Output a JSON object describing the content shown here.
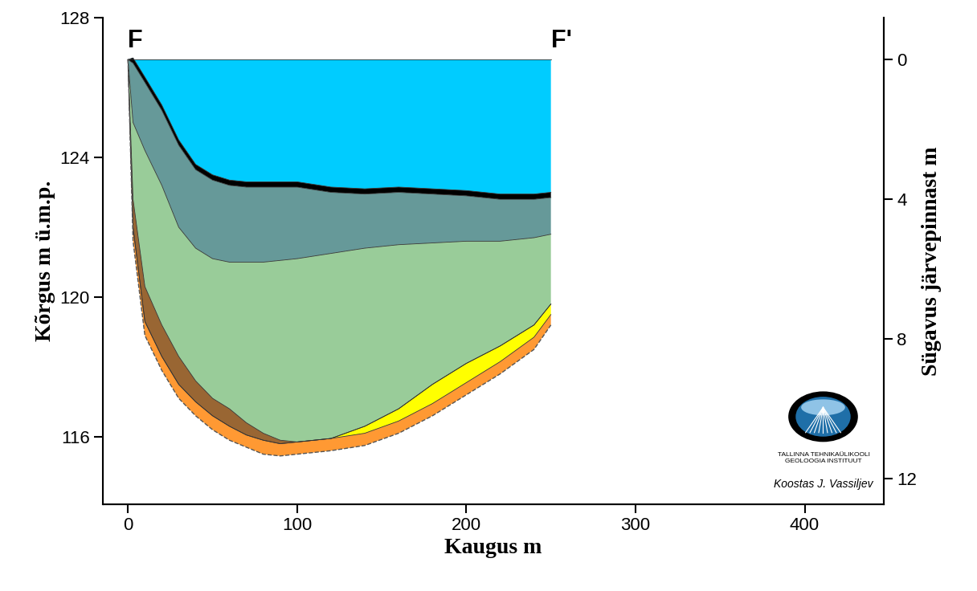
{
  "chart_data": {
    "type": "area",
    "section_start": "F",
    "section_end": "F'",
    "x_label": "Kaugus m",
    "y_label": "Kõrgus m ü.m.p.",
    "y2_label": "Sügavus järvepinnast m",
    "logo_text": [
      "TALLINNA TEHNIKAÜLIKOOLI",
      "GEOLOOGIA INSTITUUT"
    ],
    "credit": "Koostas J. Vassiljev",
    "x": [
      0,
      3,
      10,
      20,
      30,
      40,
      50,
      60,
      70,
      80,
      90,
      100,
      120,
      140,
      160,
      180,
      200,
      220,
      240,
      250
    ],
    "series": [
      {
        "type": "area",
        "color": "#00ccff",
        "values": [
          126.8,
          126.8,
          126.8,
          126.8,
          126.8,
          126.8,
          126.8,
          126.8,
          126.8,
          126.8,
          126.8,
          126.8,
          126.8,
          126.8,
          126.8,
          126.8,
          126.8,
          126.8,
          126.8,
          126.8
        ]
      },
      {
        "type": "area",
        "color": "#000000",
        "values": [
          126.8,
          126.85,
          126.3,
          125.5,
          124.5,
          123.8,
          123.5,
          123.35,
          123.3,
          123.3,
          123.3,
          123.3,
          123.15,
          123.1,
          123.15,
          123.1,
          123.05,
          122.95,
          122.95,
          123.0
        ]
      },
      {
        "type": "area",
        "color": "#669999",
        "values": [
          126.8,
          126.7,
          126.15,
          125.35,
          124.35,
          123.65,
          123.35,
          123.2,
          123.15,
          123.15,
          123.15,
          123.15,
          123.0,
          122.95,
          123.0,
          122.95,
          122.9,
          122.8,
          122.8,
          122.85
        ]
      },
      {
        "type": "area",
        "color": "#99cc99",
        "values": [
          126.8,
          125.0,
          124.2,
          123.2,
          122.0,
          121.4,
          121.1,
          121.0,
          121.0,
          121.0,
          121.05,
          121.1,
          121.25,
          121.4,
          121.5,
          121.55,
          121.6,
          121.6,
          121.7,
          121.8
        ]
      },
      {
        "type": "area",
        "color": "#996633",
        "values": [
          126.8,
          122.8,
          120.3,
          119.2,
          118.3,
          117.6,
          117.1,
          116.8,
          116.4,
          116.1,
          115.9,
          115.85,
          115.95,
          116.3,
          116.8,
          117.5,
          118.1,
          118.6,
          119.2,
          119.8
        ]
      },
      {
        "type": "area",
        "color": "#ffff00",
        "values": [
          126.8,
          122.0,
          119.3,
          118.3,
          117.5,
          117.0,
          116.6,
          116.3,
          116.05,
          115.9,
          115.8,
          115.85,
          115.95,
          116.3,
          116.8,
          117.5,
          118.1,
          118.6,
          119.2,
          119.8
        ]
      },
      {
        "type": "area",
        "color": "#ff9933",
        "values": [
          126.8,
          122.0,
          119.3,
          118.3,
          117.5,
          117.0,
          116.6,
          116.3,
          116.05,
          115.9,
          115.8,
          115.85,
          115.95,
          116.1,
          116.45,
          116.95,
          117.55,
          118.15,
          118.85,
          119.5
        ]
      },
      {
        "type": "line",
        "color": "#555555",
        "line_style": "dashed",
        "values": [
          126.8,
          121.6,
          118.9,
          117.9,
          117.1,
          116.6,
          116.2,
          115.9,
          115.7,
          115.5,
          115.45,
          115.5,
          115.6,
          115.75,
          116.1,
          116.6,
          117.2,
          117.8,
          118.5,
          119.2
        ]
      }
    ],
    "xlim": [
      -15,
      447
    ],
    "xticks": [
      0,
      100,
      200,
      300,
      400
    ],
    "ylim": [
      114.07,
      128
    ],
    "yticks": [
      116,
      120,
      124,
      128
    ],
    "y2lim": [
      12.73,
      -1.2
    ],
    "y2ticks": [
      0,
      4,
      8,
      12
    ],
    "grid": false,
    "tick_labels": true
  }
}
